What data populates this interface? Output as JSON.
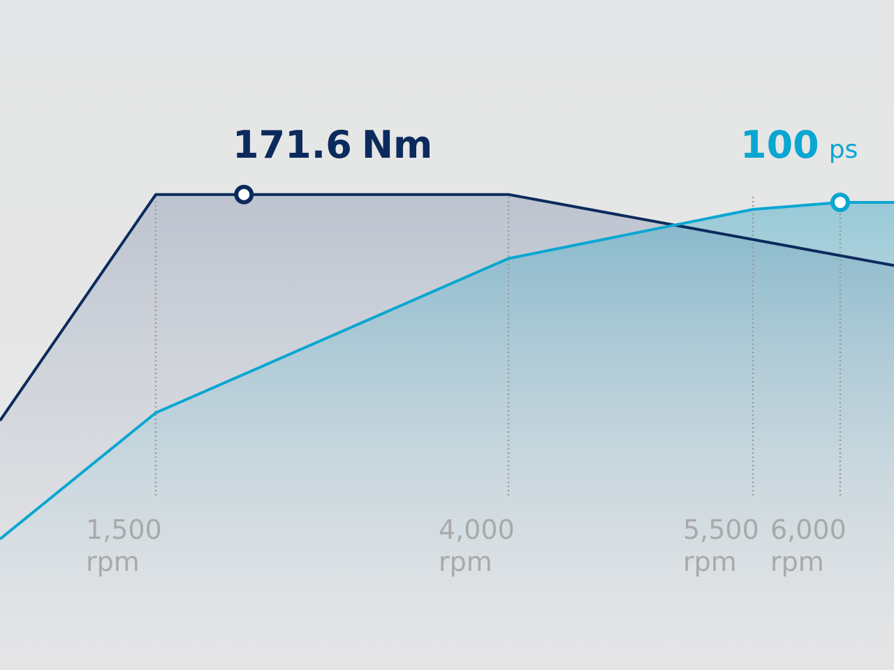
{
  "chart_data": {
    "type": "line",
    "x": [
      400,
      1500,
      4000,
      5500,
      6000,
      6300
    ],
    "xlim": [
      400,
      6300
    ],
    "xticks": [
      {
        "value": 1500,
        "label": "1,500"
      },
      {
        "value": 4000,
        "label": "4,000"
      },
      {
        "value": 5500,
        "label": "5,500"
      },
      {
        "value": 6000,
        "label": "6,000"
      }
    ],
    "x_unit": "rpm",
    "ylim": [
      0,
      200
    ],
    "y2lim": [
      0,
      118.5
    ],
    "series": [
      {
        "color": "#0c2a5c",
        "values": [
          90,
          171.6,
          171.6,
          null,
          null,
          146
        ],
        "label": "171.6",
        "unit": "Nm"
      },
      {
        "color": "#0aa6d2",
        "axis": "y2",
        "values": [
          28,
          55,
          88,
          98.5,
          100,
          100
        ],
        "label": "100",
        "unit": "ps"
      }
    ]
  }
}
